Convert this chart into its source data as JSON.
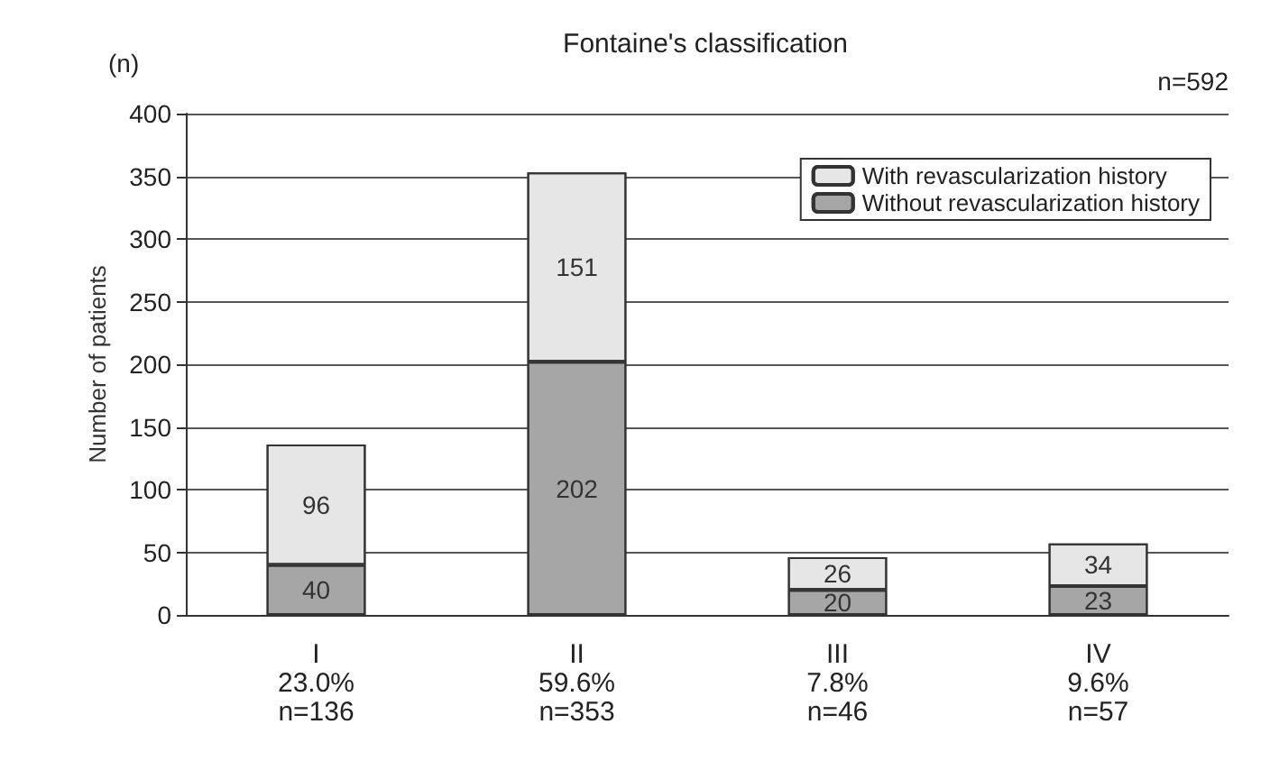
{
  "chart_data": {
    "type": "bar",
    "title": "Fontaine's classification",
    "ylabel": "Number of patients",
    "annotations": [
      "(n)",
      "n=592"
    ],
    "categories": [
      "I\n23.0%\nn=136",
      "II\n59.6%\nn=353",
      "III\n7.8%\nn=46",
      "IV\n9.6%\nn=57"
    ],
    "series": [
      {
        "name": "Without revascularization history",
        "color": "#a6a6a6",
        "values": [
          40,
          202,
          20,
          23
        ]
      },
      {
        "name": "With revascularization history",
        "color": "#e6e6e6",
        "values": [
          96,
          151,
          26,
          34
        ]
      }
    ],
    "stacked": true,
    "data_labels": true,
    "ylim": [
      0,
      400
    ],
    "yticks": [
      0,
      50,
      100,
      150,
      200,
      250,
      300,
      350,
      400
    ],
    "grid": "y",
    "legend": "top right"
  }
}
